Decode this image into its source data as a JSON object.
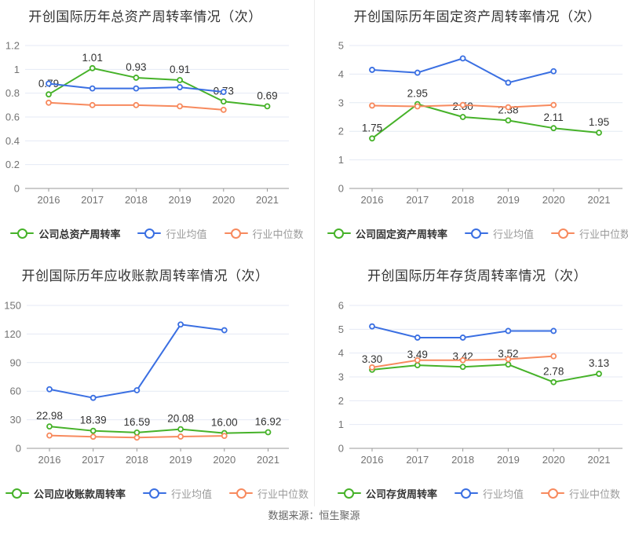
{
  "page": {
    "source_note": "数据来源：恒生聚源"
  },
  "colors": {
    "company": "#46b229",
    "industry_avg": "#3a6fe2",
    "industry_median": "#f78a5e",
    "grid": "#e4eaf4",
    "axis": "#999999",
    "tick_text": "#737373",
    "data_label": "#333333"
  },
  "chart_data": [
    {
      "type": "line",
      "title": "开创国际历年总资产周转率情况（次）",
      "x": [
        "2016",
        "2017",
        "2018",
        "2019",
        "2020",
        "2021"
      ],
      "ylim": [
        0,
        1.2
      ],
      "yticks": [
        "0",
        "0.2",
        "0.4",
        "0.6",
        "0.8",
        "1",
        "1.2"
      ],
      "grid": true,
      "legend_position": "bottom",
      "series": [
        {
          "name": "公司总资产周转率",
          "key": "company",
          "values": [
            0.79,
            1.01,
            0.93,
            0.91,
            0.73,
            0.69
          ],
          "labels": [
            "0.79",
            "1.01",
            "0.93",
            "0.91",
            "0.73",
            "0.69"
          ]
        },
        {
          "name": "行业均值",
          "key": "industry_avg",
          "values": [
            0.88,
            0.84,
            0.84,
            0.85,
            0.81
          ]
        },
        {
          "name": "行业中位数",
          "key": "industry_median",
          "values": [
            0.72,
            0.7,
            0.7,
            0.69,
            0.66
          ]
        }
      ]
    },
    {
      "type": "line",
      "title": "开创国际历年固定资产周转率情况（次）",
      "x": [
        "2016",
        "2017",
        "2018",
        "2019",
        "2020",
        "2021"
      ],
      "ylim": [
        0,
        5
      ],
      "yticks": [
        "0",
        "1",
        "2",
        "3",
        "4",
        "5"
      ],
      "grid": true,
      "legend_position": "bottom",
      "series": [
        {
          "name": "公司固定资产周转率",
          "key": "company",
          "values": [
            1.75,
            2.95,
            2.5,
            2.38,
            2.11,
            1.95
          ],
          "labels": [
            "1.75",
            "2.95",
            "2.50",
            "2.38",
            "2.11",
            "1.95"
          ]
        },
        {
          "name": "行业均值",
          "key": "industry_avg",
          "values": [
            4.15,
            4.05,
            4.55,
            3.7,
            4.1
          ]
        },
        {
          "name": "行业中位数",
          "key": "industry_median",
          "values": [
            2.9,
            2.87,
            2.92,
            2.84,
            2.92
          ]
        }
      ]
    },
    {
      "type": "line",
      "title": "开创国际历年应收账款周转率情况（次）",
      "x": [
        "2016",
        "2017",
        "2018",
        "2019",
        "2020",
        "2021"
      ],
      "ylim": [
        0,
        150
      ],
      "yticks": [
        "0",
        "30",
        "60",
        "90",
        "120",
        "150"
      ],
      "grid": true,
      "legend_position": "bottom",
      "series": [
        {
          "name": "公司应收账款周转率",
          "key": "company",
          "values": [
            22.98,
            18.39,
            16.59,
            20.08,
            16.0,
            16.92
          ],
          "labels": [
            "22.98",
            "18.39",
            "16.59",
            "20.08",
            "16.00",
            "16.92"
          ]
        },
        {
          "name": "行业均值",
          "key": "industry_avg",
          "values": [
            62,
            53,
            61,
            130,
            124
          ]
        },
        {
          "name": "行业中位数",
          "key": "industry_median",
          "values": [
            13.5,
            12.2,
            11.3,
            12.4,
            13.1
          ]
        }
      ]
    },
    {
      "type": "line",
      "title": "开创国际历年存货周转率情况（次）",
      "x": [
        "2016",
        "2017",
        "2018",
        "2019",
        "2020",
        "2021"
      ],
      "ylim": [
        0,
        6
      ],
      "yticks": [
        "0",
        "1",
        "2",
        "3",
        "4",
        "5",
        "6"
      ],
      "grid": true,
      "legend_position": "bottom",
      "series": [
        {
          "name": "公司存货周转率",
          "key": "company",
          "values": [
            3.3,
            3.49,
            3.42,
            3.52,
            2.78,
            3.13
          ],
          "labels": [
            "3.30",
            "3.49",
            "3.42",
            "3.52",
            "2.78",
            "3.13"
          ]
        },
        {
          "name": "行业均值",
          "key": "industry_avg",
          "values": [
            5.12,
            4.65,
            4.65,
            4.93,
            4.93
          ]
        },
        {
          "name": "行业中位数",
          "key": "industry_median",
          "values": [
            3.4,
            3.7,
            3.7,
            3.74,
            3.87
          ]
        }
      ]
    }
  ]
}
